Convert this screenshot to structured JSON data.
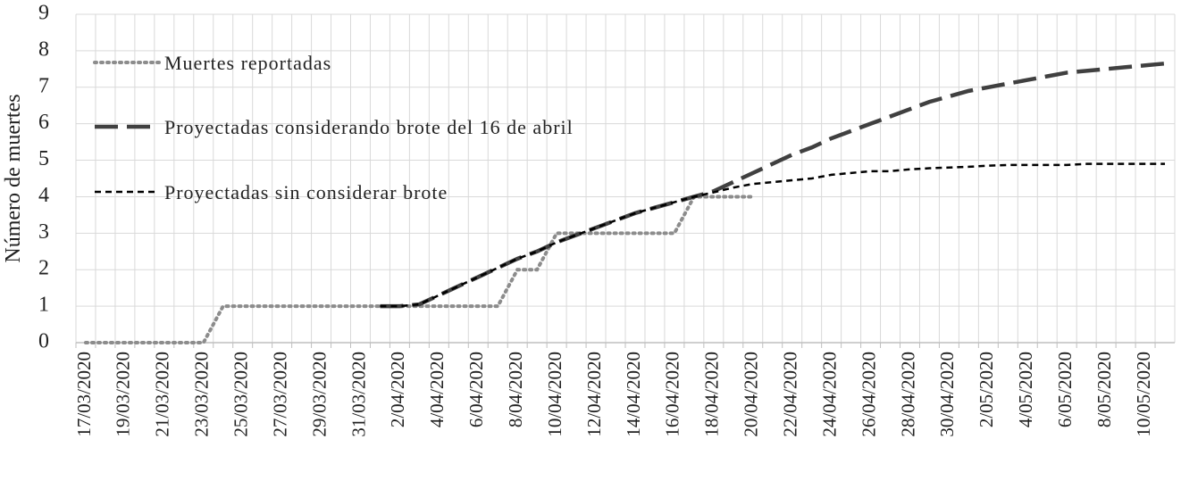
{
  "chart_data": {
    "type": "line",
    "y_label": "Número de muertes",
    "categories": [
      "17/03/2020",
      null,
      "19/03/2020",
      null,
      "21/03/2020",
      null,
      "23/03/2020",
      null,
      "25/03/2020",
      null,
      "27/03/2020",
      null,
      "29/03/2020",
      null,
      "31/03/2020",
      null,
      "2/04/2020",
      null,
      "4/04/2020",
      null,
      "6/04/2020",
      null,
      "8/04/2020",
      null,
      "10/04/2020",
      null,
      "12/04/2020",
      null,
      "14/04/2020",
      null,
      "16/04/2020",
      null,
      "18/04/2020",
      null,
      "20/04/2020",
      null,
      "22/04/2020",
      null,
      "24/04/2020",
      null,
      "26/04/2020",
      null,
      "28/04/2020",
      null,
      "30/04/2020",
      null,
      "2/05/2020",
      null,
      "4/05/2020",
      null,
      "6/05/2020",
      null,
      "8/05/2020",
      null,
      "10/05/2020",
      null
    ],
    "series": [
      {
        "name": "Muertes reportadas",
        "color": "#8c8c8c",
        "dash": "dotted",
        "values": [
          0,
          0,
          0,
          0,
          0,
          0,
          0,
          1,
          1,
          1,
          1,
          1,
          1,
          1,
          1,
          1,
          1,
          1,
          1,
          1,
          1,
          1,
          2,
          2,
          3,
          3,
          3,
          3,
          3,
          3,
          3,
          4,
          4,
          4,
          4,
          null,
          null,
          null,
          null,
          null,
          null,
          null,
          null,
          null,
          null,
          null,
          null,
          null,
          null,
          null,
          null,
          null,
          null,
          null,
          null,
          null
        ]
      },
      {
        "name": "Proyectadas considerando brote del 16 de abril",
        "color": "#404040",
        "dash": "long",
        "values": [
          null,
          null,
          null,
          null,
          null,
          null,
          null,
          null,
          null,
          null,
          null,
          null,
          null,
          null,
          null,
          1.0,
          1.0,
          1.05,
          1.3,
          1.55,
          1.8,
          2.05,
          2.3,
          2.5,
          2.75,
          2.95,
          3.15,
          3.35,
          3.55,
          3.7,
          3.85,
          4.0,
          4.15,
          4.4,
          4.65,
          4.9,
          5.15,
          5.35,
          5.6,
          5.8,
          6.0,
          6.2,
          6.4,
          6.6,
          6.75,
          6.9,
          7.0,
          7.1,
          7.2,
          7.3,
          7.4,
          7.45,
          7.5,
          7.55,
          7.6,
          7.65
        ]
      },
      {
        "name": "Proyectadas sin considerar brote",
        "color": "#000000",
        "dash": "short",
        "values": [
          null,
          null,
          null,
          null,
          null,
          null,
          null,
          null,
          null,
          null,
          null,
          null,
          null,
          null,
          null,
          1.0,
          1.0,
          1.05,
          1.3,
          1.55,
          1.8,
          2.05,
          2.3,
          2.5,
          2.75,
          2.95,
          3.15,
          3.35,
          3.55,
          3.7,
          3.85,
          4.0,
          4.12,
          4.25,
          4.35,
          4.4,
          4.45,
          4.5,
          4.6,
          4.65,
          4.7,
          4.7,
          4.75,
          4.78,
          4.8,
          4.82,
          4.85,
          4.87,
          4.87,
          4.87,
          4.87,
          4.9,
          4.9,
          4.9,
          4.9,
          4.9
        ]
      }
    ],
    "ylim": [
      0,
      9
    ],
    "yticks": [
      0,
      1,
      2,
      3,
      4,
      5,
      6,
      7,
      8,
      9
    ],
    "grid": true
  }
}
